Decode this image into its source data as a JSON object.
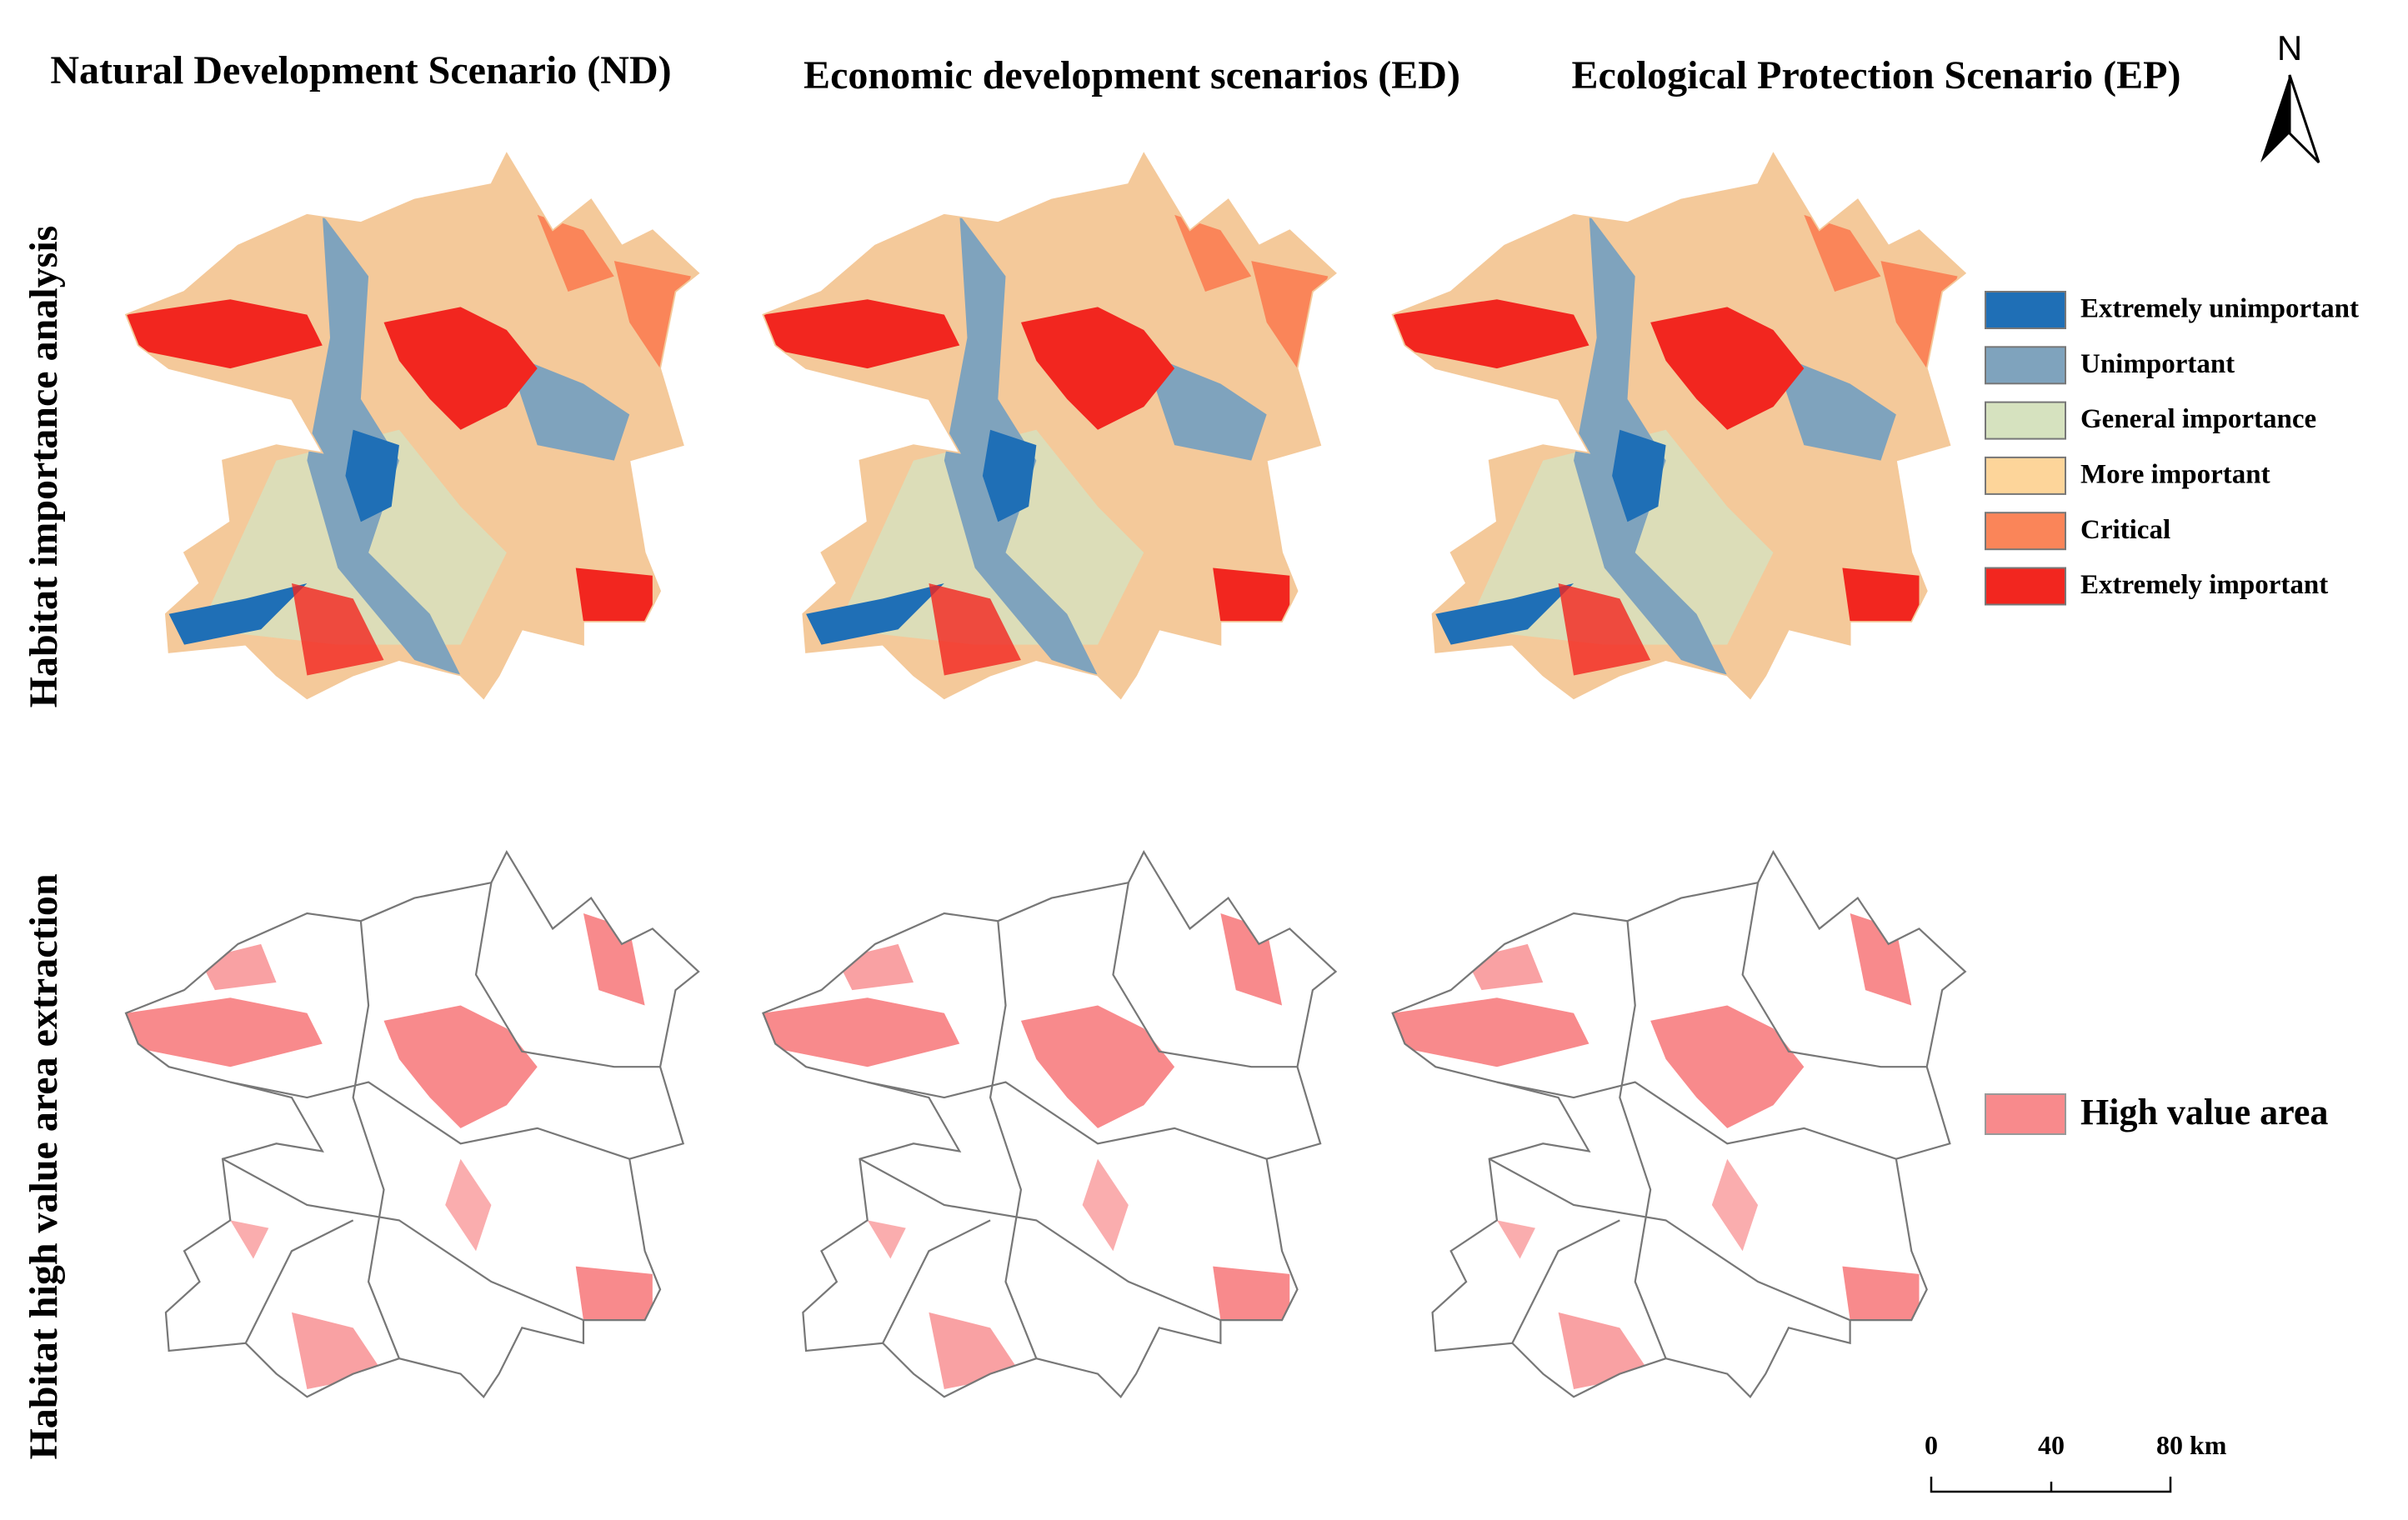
{
  "header": {
    "titles": [
      "Natural Development Scenario (ND)",
      "Economic development scenarios (ED)",
      "Ecological Protection Scenario (EP)"
    ]
  },
  "rows": [
    "Habitat importance analysis",
    "Habitat high value area extraction"
  ],
  "legend": {
    "items": [
      {
        "label": "Extremely unimportant",
        "color": "#1f6fb6"
      },
      {
        "label": "Unimportant",
        "color": "#7fa3bd"
      },
      {
        "label": "General importance",
        "color": "#d6e2bf"
      },
      {
        "label": "More important",
        "color": "#fdd59a"
      },
      {
        "label": "Critical",
        "color": "#fa8559"
      },
      {
        "label": "Extremely important",
        "color": "#f2261f"
      }
    ],
    "high_value": {
      "label": "High value area",
      "color": "#f88a8c"
    }
  },
  "north": "N",
  "scale": [
    "0",
    "40",
    "80 km"
  ]
}
